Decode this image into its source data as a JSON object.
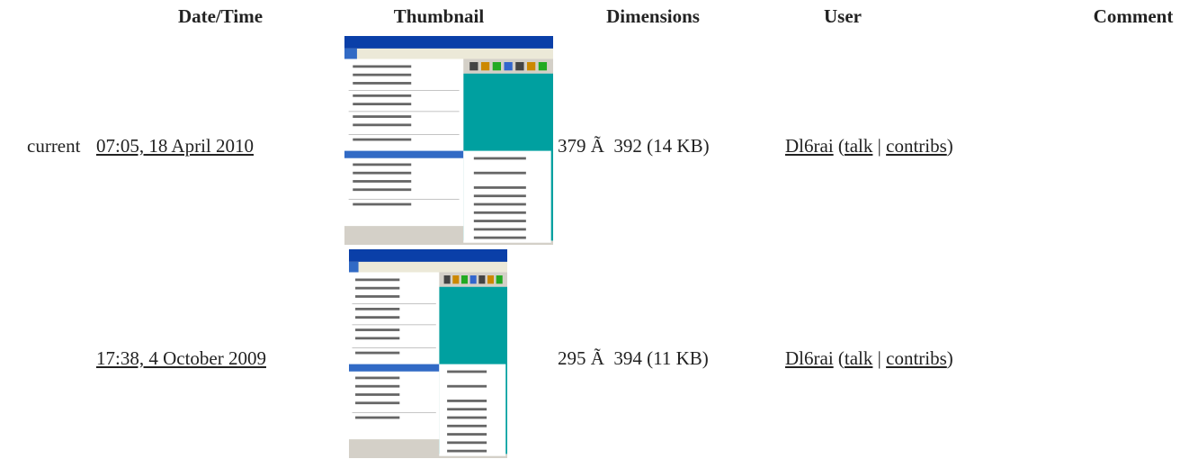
{
  "table": {
    "headers": [
      "Date/Time",
      "Thumbnail",
      "Dimensions",
      "User",
      "Comment"
    ],
    "rows": [
      {
        "status": "current",
        "datetime": "07:05, 18 April 2010",
        "dimensions": "379 Ã  392 (14 KB)",
        "user": "Dl6rai",
        "user_tools": {
          "open": "(",
          "talk": "talk",
          "sep": "|",
          "contribs": "contribs",
          "close": ")"
        }
      },
      {
        "status": "",
        "datetime": "17:38, 4 October 2009",
        "dimensions": "295 Ã  394 (11 KB)",
        "user": "Dl6rai",
        "user_tools": {
          "open": "(",
          "talk": "talk",
          "sep": "|",
          "contribs": "contribs",
          "close": ")"
        }
      }
    ]
  }
}
